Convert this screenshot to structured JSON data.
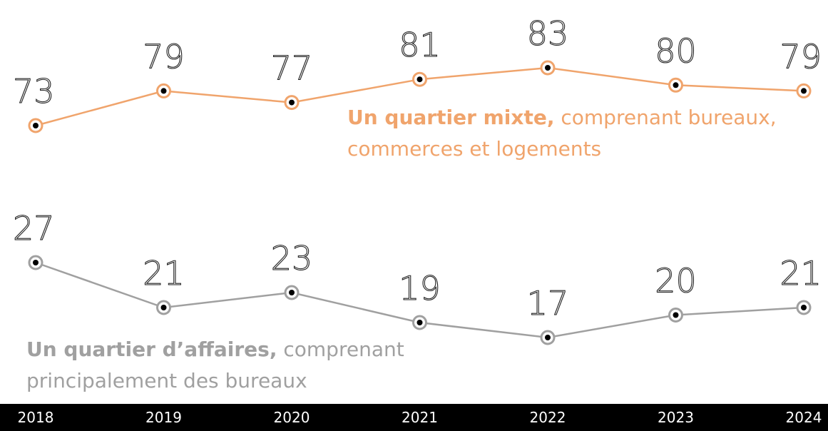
{
  "chart_data": {
    "type": "line",
    "categories": [
      "2018",
      "2019",
      "2020",
      "2021",
      "2022",
      "2023",
      "2024"
    ],
    "series": [
      {
        "name": "Un quartier mixte,",
        "description": "comprenant bureaux, commerces et logements",
        "color": "#f0a46c",
        "values": [
          73,
          79,
          77,
          81,
          83,
          80,
          79
        ]
      },
      {
        "name": "Un quartier d’affaires,",
        "description": "comprenant principalement des bureaux",
        "color": "#a0a0a0",
        "values": [
          27,
          21,
          23,
          19,
          17,
          20,
          21
        ]
      }
    ]
  }
}
